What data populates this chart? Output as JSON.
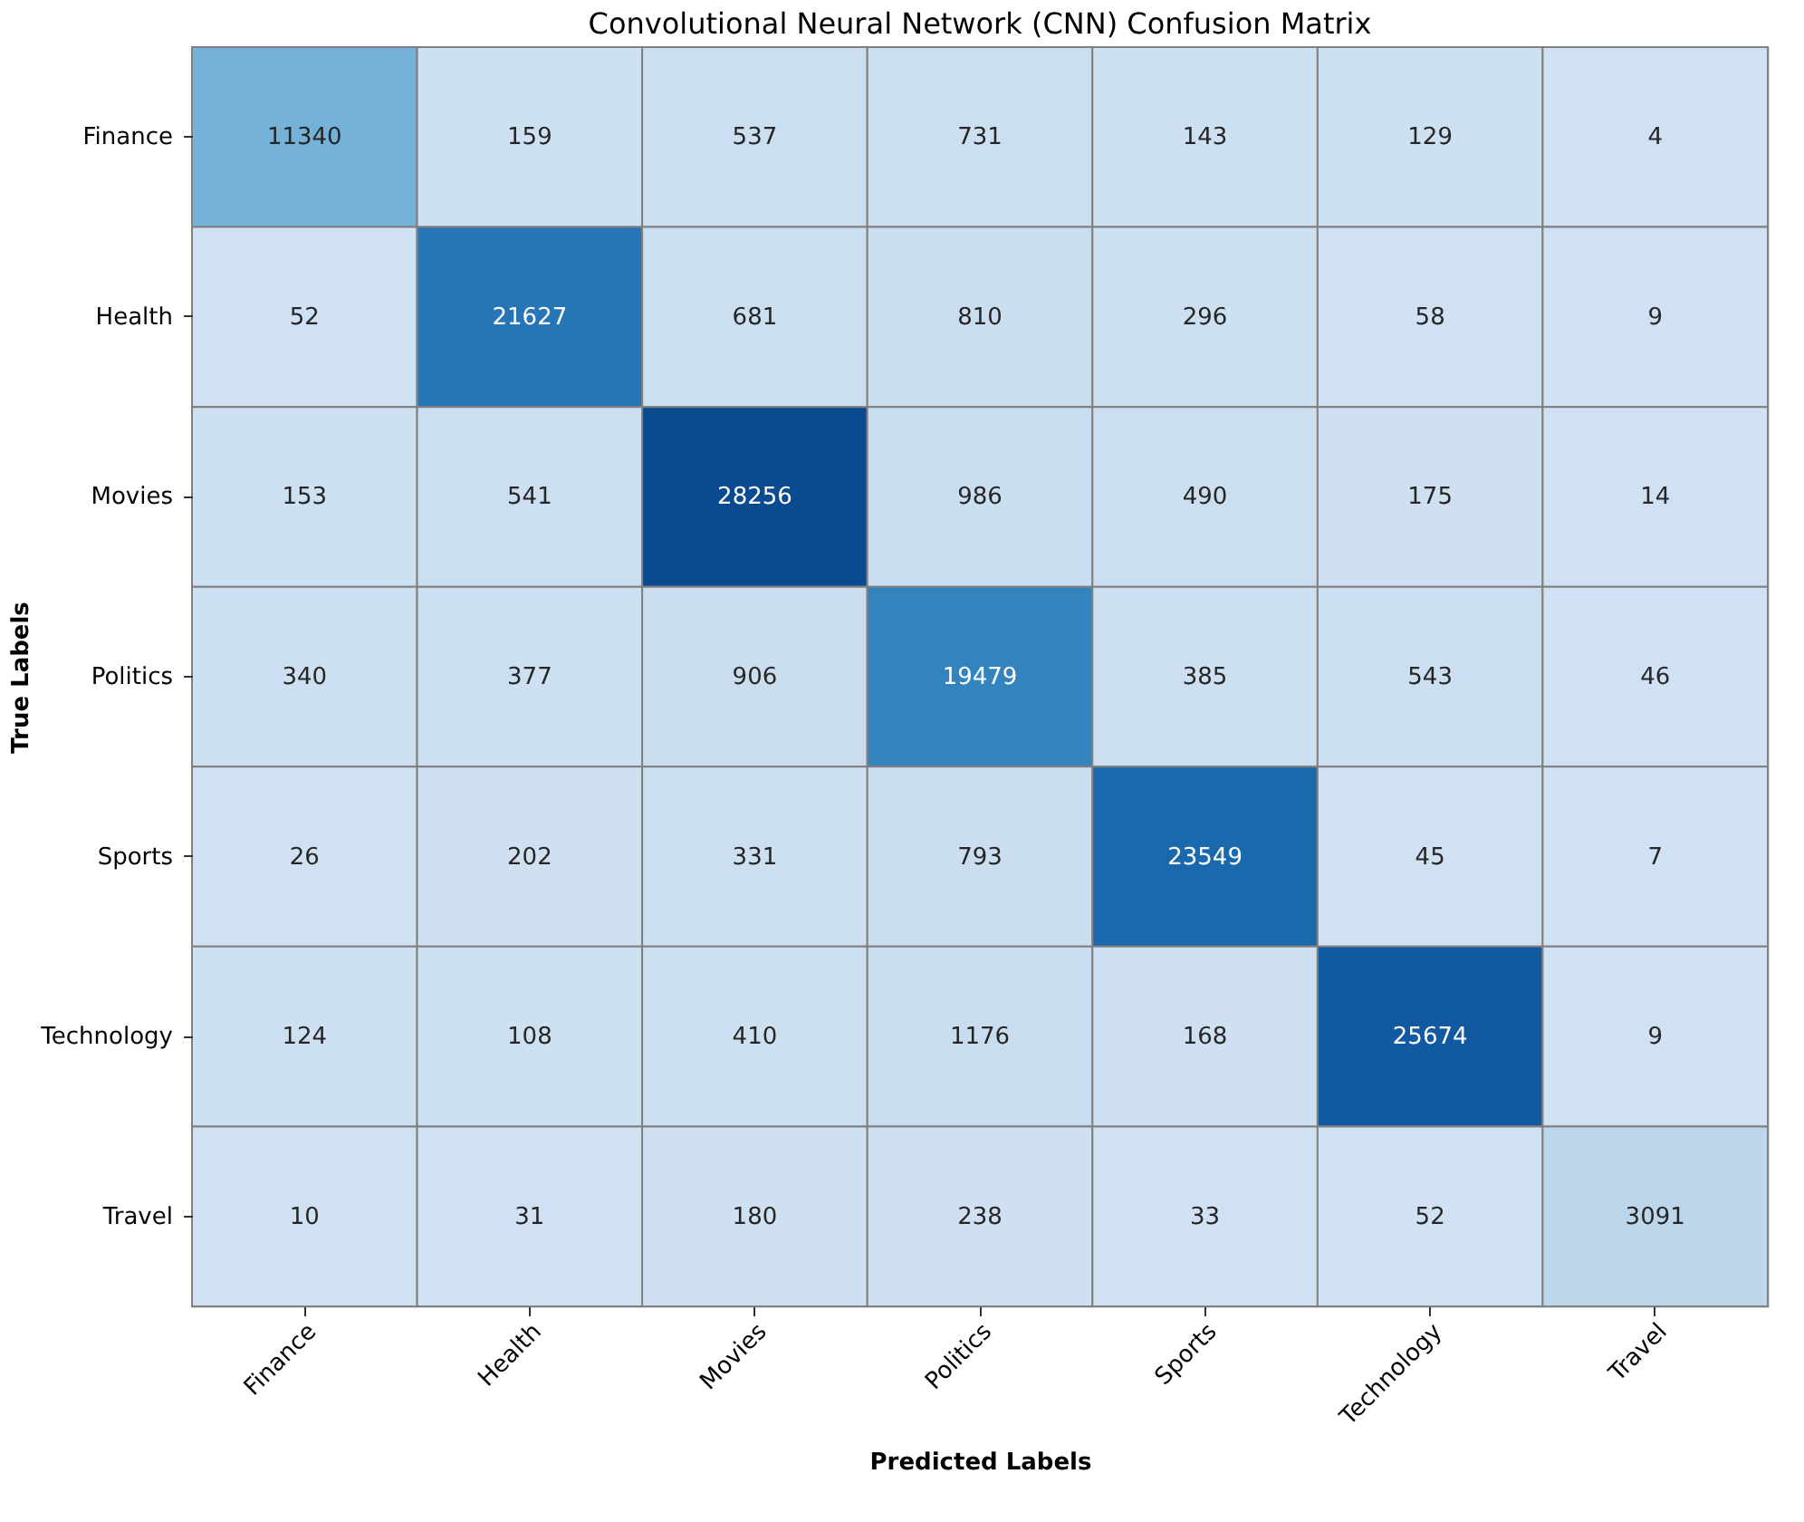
{
  "chart_data": {
    "type": "heatmap",
    "title": "Convolutional Neural Network (CNN)    Confusion Matrix",
    "xlabel": "Predicted Labels",
    "ylabel": "True Labels",
    "categories": [
      "Finance",
      "Health",
      "Movies",
      "Politics",
      "Sports",
      "Technology",
      "Travel"
    ],
    "y_categories": [
      "Finance",
      "Health",
      "Movies",
      "Politics",
      "Sports",
      "Technology",
      "Travel"
    ],
    "cells": [
      [
        11340,
        159,
        537,
        731,
        143,
        129,
        4
      ],
      [
        52,
        21627,
        681,
        810,
        296,
        58,
        9
      ],
      [
        153,
        541,
        28256,
        986,
        490,
        175,
        14
      ],
      [
        340,
        377,
        906,
        19479,
        385,
        543,
        46
      ],
      [
        26,
        202,
        331,
        793,
        23549,
        45,
        7
      ],
      [
        124,
        108,
        410,
        1176,
        168,
        25674,
        9
      ],
      [
        10,
        31,
        180,
        238,
        33,
        52,
        3091
      ]
    ],
    "data_labels": true
  }
}
